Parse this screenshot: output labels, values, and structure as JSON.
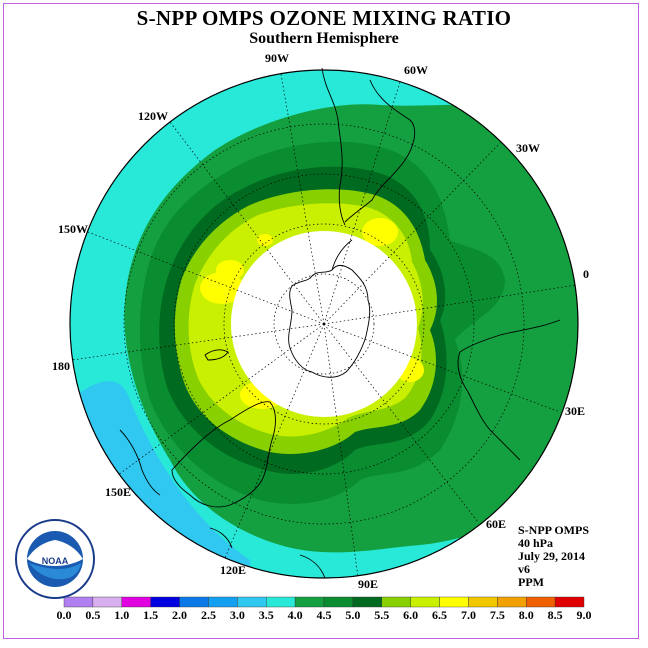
{
  "header": {
    "title": "S-NPP OMPS OZONE MIXING RATIO",
    "subtitle": "Southern Hemisphere"
  },
  "map": {
    "projection": "polar stereographic (south pole)",
    "longitude_labels": [
      {
        "name": "lon-90w",
        "text": "90W"
      },
      {
        "name": "lon-60w",
        "text": "60W"
      },
      {
        "name": "lon-30w",
        "text": "30W"
      },
      {
        "name": "lon-0",
        "text": "0"
      },
      {
        "name": "lon-30e",
        "text": "30E"
      },
      {
        "name": "lon-60e",
        "text": "60E"
      },
      {
        "name": "lon-90e",
        "text": "90E"
      },
      {
        "name": "lon-120e",
        "text": "120E"
      },
      {
        "name": "lon-150e",
        "text": "150E"
      },
      {
        "name": "lon-180",
        "text": "180"
      },
      {
        "name": "lon-150w",
        "text": "150W"
      },
      {
        "name": "lon-120w",
        "text": "120W"
      }
    ],
    "no_data_region": "polar night (white)"
  },
  "info": {
    "product": "S-NPP OMPS",
    "level": "40 hPa",
    "date": "July 29, 2014",
    "version": "v6",
    "units": "PPM"
  },
  "logo": {
    "text": "NOAA",
    "icon": "noaa-logo-icon"
  },
  "colorbar": {
    "labels": [
      "0.0",
      "0.5",
      "1.0",
      "1.5",
      "2.0",
      "2.5",
      "3.0",
      "3.5",
      "4.0",
      "4.5",
      "5.0",
      "5.5",
      "6.0",
      "6.5",
      "7.0",
      "7.5",
      "8.0",
      "8.5",
      "9.0"
    ],
    "colors": [
      "#b080f0",
      "#d8b0f0",
      "#e000e0",
      "#0000e0",
      "#0a78e6",
      "#14a0f0",
      "#30c8f0",
      "#28e8d8",
      "#14a040",
      "#0a8c30",
      "#006a20",
      "#88d000",
      "#c8f000",
      "#ffff00",
      "#f0c800",
      "#f0a000",
      "#f06000",
      "#e00000",
      "#784828"
    ]
  }
}
